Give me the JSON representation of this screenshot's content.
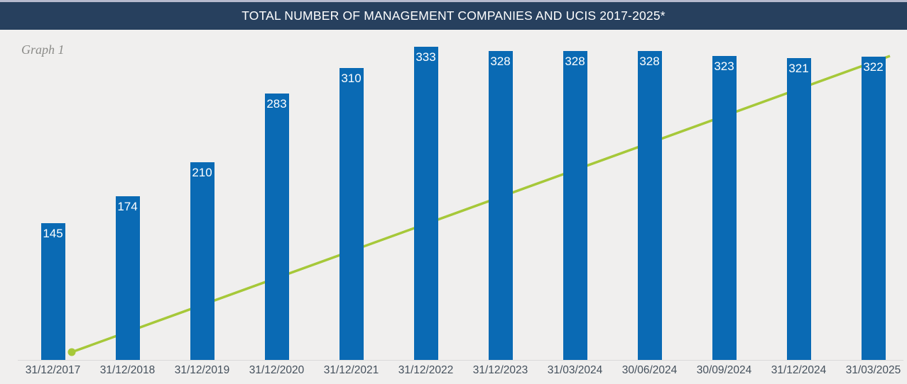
{
  "header": {
    "title": "TOTAL NUMBER OF MANAGEMENT COMPANIES AND UCIS 2017-2025*"
  },
  "graph_label": "Graph 1",
  "chart_data": {
    "type": "bar",
    "title": "TOTAL NUMBER OF MANAGEMENT COMPANIES AND UCIS 2017-2025*",
    "categories": [
      "31/12/2017",
      "31/12/2018",
      "31/12/2019",
      "31/12/2020",
      "31/12/2021",
      "31/12/2022",
      "31/12/2023",
      "31/03/2024",
      "30/06/2024",
      "30/09/2024",
      "31/12/2024",
      "31/03/2025"
    ],
    "values": [
      145,
      174,
      210,
      283,
      310,
      333,
      328,
      328,
      328,
      323,
      321,
      322
    ],
    "data_labels": [
      "145",
      "174",
      "210",
      "283",
      "310",
      "333",
      "328",
      "328",
      "328",
      "323",
      "321",
      "322"
    ],
    "xlabel": "",
    "ylabel": "",
    "ylim": [
      0,
      350
    ],
    "y_axis_visible": false,
    "grid": false,
    "legend": "none",
    "overlay_line": {
      "type": "line",
      "values_labeled": false,
      "shape": "straight rising line from baseline at first category to top at last category",
      "marker_at_start": true,
      "drawn_behind_bars": true
    },
    "colors": {
      "bar": "#0a6ab4",
      "bar_label_text": "#ffffff",
      "overlay_line": "#a6c839",
      "header_bg": "#27405e",
      "header_text": "#ffffff",
      "background": "#f0efee",
      "axis_baseline": "#d9d9d9",
      "x_label_text": "#44505c",
      "graph_label_text": "#8b8b88"
    }
  }
}
